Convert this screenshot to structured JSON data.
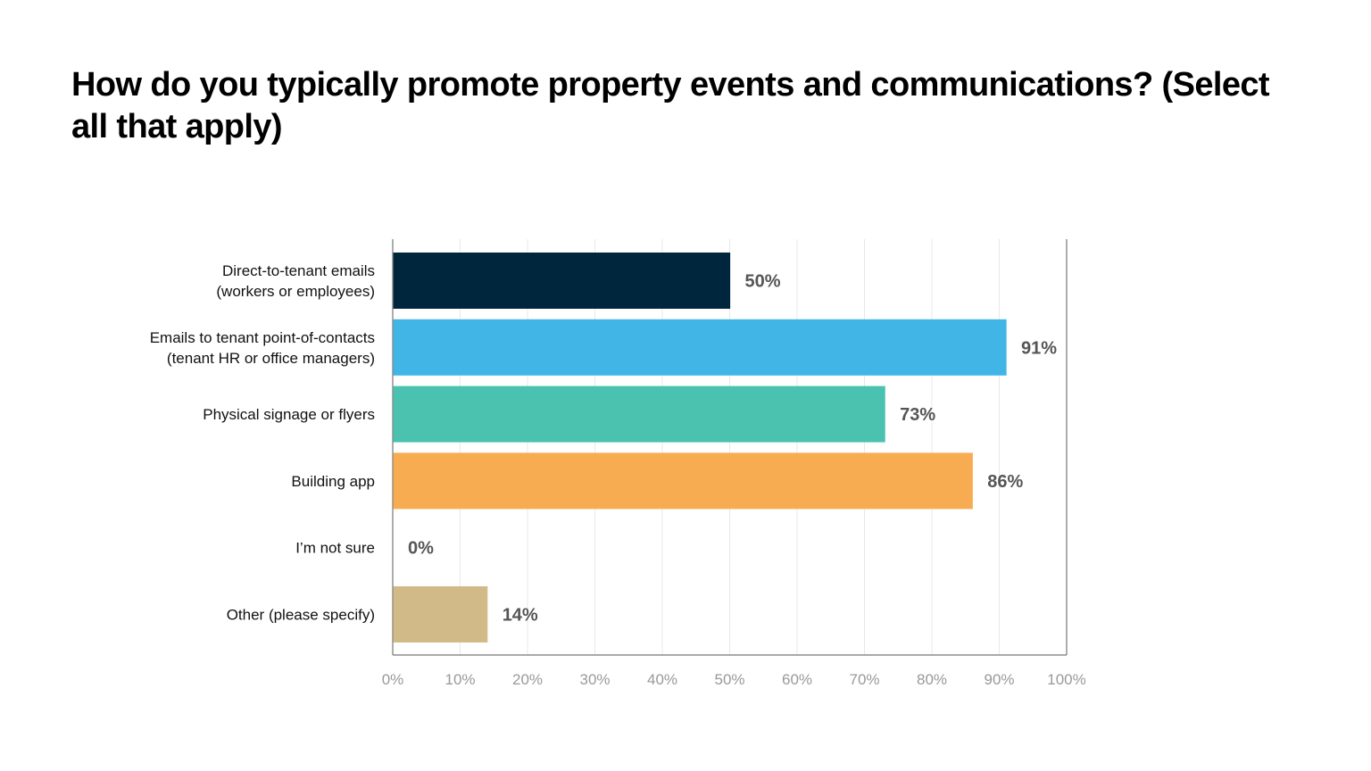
{
  "chart_data": {
    "type": "bar",
    "orientation": "horizontal",
    "title": "How do you typically promote property events and communications? (Select all that apply)",
    "categories": [
      [
        "Direct-to-tenant emails",
        "(workers or employees)"
      ],
      [
        "Emails to tenant point-of-contacts",
        "(tenant HR or office managers)"
      ],
      [
        "Physical signage or flyers"
      ],
      [
        "Building app"
      ],
      [
        "I’m not sure"
      ],
      [
        "Other (please specify)"
      ]
    ],
    "values": [
      50,
      91,
      73,
      86,
      0,
      14
    ],
    "value_labels": [
      "50%",
      "91%",
      "73%",
      "86%",
      "0%",
      "14%"
    ],
    "colors": [
      "#00263E",
      "#41B6E6",
      "#4BC1B0",
      "#F8AC52",
      "#FFFFFF",
      "#D2BA88"
    ],
    "xlim": [
      0,
      100
    ],
    "xticks": [
      "0%",
      "10%",
      "20%",
      "30%",
      "40%",
      "50%",
      "60%",
      "70%",
      "80%",
      "90%",
      "100%"
    ],
    "xlabel": "",
    "ylabel": "",
    "grid": true,
    "legend": "none"
  }
}
